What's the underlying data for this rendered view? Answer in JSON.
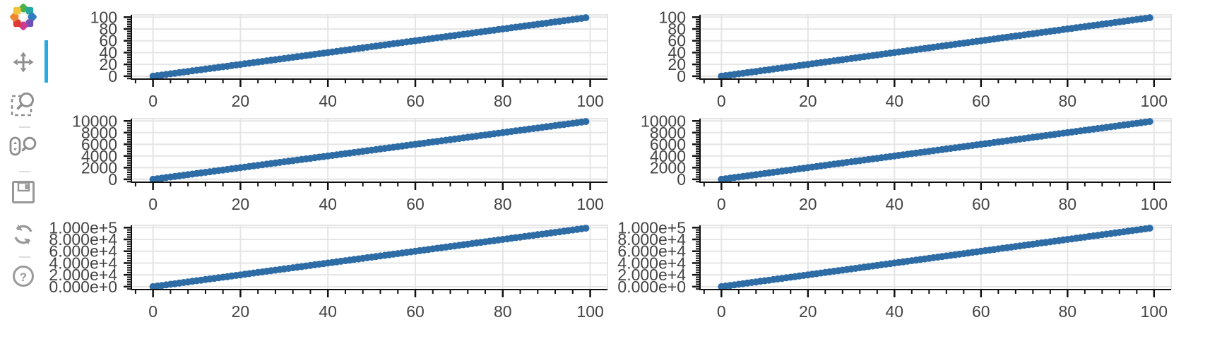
{
  "app": {
    "kind": "bokeh-plot-window"
  },
  "toolbar": {
    "logo_icon": "bokeh-logo",
    "orientation": "vertical",
    "active_tool": "pan",
    "active_indicator_color": "#26AAE1",
    "icon_color": "#8F8F8F",
    "divider_color": "#DDDDDD",
    "logo_colors": [
      "#4EB148",
      "#25A8A0",
      "#2E7DC0",
      "#7050B8",
      "#CA3A96",
      "#DD3B34",
      "#EE8633",
      "#EFC43C"
    ],
    "tools": [
      {
        "id": "pan",
        "icon": "pan-icon",
        "active": true
      },
      {
        "id": "box-zoom",
        "icon": "box-zoom-icon",
        "active": false
      },
      {
        "id": "wheel-zoom",
        "icon": "wheel-zoom-icon",
        "active": false
      },
      {
        "id": "save",
        "icon": "save-icon",
        "active": false
      },
      {
        "id": "reset",
        "icon": "reset-icon",
        "active": false
      },
      {
        "id": "help",
        "icon": "help-icon",
        "active": false
      }
    ]
  },
  "chart_data": {
    "type": "scatter",
    "grid_rows": 3,
    "columns_per_row": 2,
    "marker": {
      "shape": "circle",
      "radius_px": 5,
      "color": "#2E6CA5"
    },
    "grid_color": "#E5E5E5",
    "outline_color": "#E5E5E5",
    "axis_color": "#111111",
    "label_color": "#444444",
    "grid_on": true,
    "x": [
      0,
      1,
      2,
      3,
      4,
      5,
      6,
      7,
      8,
      9,
      10,
      11,
      12,
      13,
      14,
      15,
      16,
      17,
      18,
      19,
      20,
      21,
      22,
      23,
      24,
      25,
      26,
      27,
      28,
      29,
      30,
      31,
      32,
      33,
      34,
      35,
      36,
      37,
      38,
      39,
      40,
      41,
      42,
      43,
      44,
      45,
      46,
      47,
      48,
      49,
      50,
      51,
      52,
      53,
      54,
      55,
      56,
      57,
      58,
      59,
      60,
      61,
      62,
      63,
      64,
      65,
      66,
      67,
      68,
      69,
      70,
      71,
      72,
      73,
      74,
      75,
      76,
      77,
      78,
      79,
      80,
      81,
      82,
      83,
      84,
      85,
      86,
      87,
      88,
      89,
      90,
      91,
      92,
      93,
      94,
      95,
      96,
      97,
      98,
      99
    ],
    "x_axis": {
      "range": [
        -4.95,
        103.95
      ],
      "major_ticks": [
        0,
        20,
        40,
        60,
        80,
        100
      ],
      "major_tick_labels": [
        "0",
        "20",
        "40",
        "60",
        "80",
        "100"
      ],
      "minor_tick_step": 4
    },
    "rows": [
      {
        "y_values": [
          0,
          1,
          2,
          3,
          4,
          5,
          6,
          7,
          8,
          9,
          10,
          11,
          12,
          13,
          14,
          15,
          16,
          17,
          18,
          19,
          20,
          21,
          22,
          23,
          24,
          25,
          26,
          27,
          28,
          29,
          30,
          31,
          32,
          33,
          34,
          35,
          36,
          37,
          38,
          39,
          40,
          41,
          42,
          43,
          44,
          45,
          46,
          47,
          48,
          49,
          50,
          51,
          52,
          53,
          54,
          55,
          56,
          57,
          58,
          59,
          60,
          61,
          62,
          63,
          64,
          65,
          66,
          67,
          68,
          69,
          70,
          71,
          72,
          73,
          74,
          75,
          76,
          77,
          78,
          79,
          80,
          81,
          82,
          83,
          84,
          85,
          86,
          87,
          88,
          89,
          90,
          91,
          92,
          93,
          94,
          95,
          96,
          97,
          98,
          99
        ],
        "y_axis": {
          "range": [
            -4.95,
            103.95
          ],
          "major_ticks": [
            0,
            20,
            40,
            60,
            80,
            100
          ],
          "major_tick_labels": [
            "0",
            "20",
            "40",
            "60",
            "80",
            "100"
          ],
          "minor_tick_step": 4
        }
      },
      {
        "y_values": [
          0,
          100,
          200,
          300,
          400,
          500,
          600,
          700,
          800,
          900,
          1000,
          1100,
          1200,
          1300,
          1400,
          1500,
          1600,
          1700,
          1800,
          1900,
          2000,
          2100,
          2200,
          2300,
          2400,
          2500,
          2600,
          2700,
          2800,
          2900,
          3000,
          3100,
          3200,
          3300,
          3400,
          3500,
          3600,
          3700,
          3800,
          3900,
          4000,
          4100,
          4200,
          4300,
          4400,
          4500,
          4600,
          4700,
          4800,
          4900,
          5000,
          5100,
          5200,
          5300,
          5400,
          5500,
          5600,
          5700,
          5800,
          5900,
          6000,
          6100,
          6200,
          6300,
          6400,
          6500,
          6600,
          6700,
          6800,
          6900,
          7000,
          7100,
          7200,
          7300,
          7400,
          7500,
          7600,
          7700,
          7800,
          7900,
          8000,
          8100,
          8200,
          8300,
          8400,
          8500,
          8600,
          8700,
          8800,
          8900,
          9000,
          9100,
          9200,
          9300,
          9400,
          9500,
          9600,
          9700,
          9800,
          9900
        ],
        "y_axis": {
          "range": [
            -495,
            10395
          ],
          "major_ticks": [
            0,
            2000,
            4000,
            6000,
            8000,
            10000
          ],
          "major_tick_labels": [
            "0",
            "2000",
            "4000",
            "6000",
            "8000",
            "10000"
          ],
          "minor_tick_step": 400
        }
      },
      {
        "y_values": [
          0,
          1000,
          2000,
          3000,
          4000,
          5000,
          6000,
          7000,
          8000,
          9000,
          10000,
          11000,
          12000,
          13000,
          14000,
          15000,
          16000,
          17000,
          18000,
          19000,
          20000,
          21000,
          22000,
          23000,
          24000,
          25000,
          26000,
          27000,
          28000,
          29000,
          30000,
          31000,
          32000,
          33000,
          34000,
          35000,
          36000,
          37000,
          38000,
          39000,
          40000,
          41000,
          42000,
          43000,
          44000,
          45000,
          46000,
          47000,
          48000,
          49000,
          50000,
          51000,
          52000,
          53000,
          54000,
          55000,
          56000,
          57000,
          58000,
          59000,
          60000,
          61000,
          62000,
          63000,
          64000,
          65000,
          66000,
          67000,
          68000,
          69000,
          70000,
          71000,
          72000,
          73000,
          74000,
          75000,
          76000,
          77000,
          78000,
          79000,
          80000,
          81000,
          82000,
          83000,
          84000,
          85000,
          86000,
          87000,
          88000,
          89000,
          90000,
          91000,
          92000,
          93000,
          94000,
          95000,
          96000,
          97000,
          98000,
          99000
        ],
        "y_axis": {
          "range": [
            -4950,
            103950
          ],
          "major_ticks": [
            0,
            20000,
            40000,
            60000,
            80000,
            100000
          ],
          "major_tick_labels": [
            "0.000e+0",
            "2.000e+4",
            "4.000e+4",
            "6.000e+4",
            "8.000e+4",
            "1.000e+5"
          ],
          "minor_tick_step": 4000
        }
      }
    ]
  }
}
